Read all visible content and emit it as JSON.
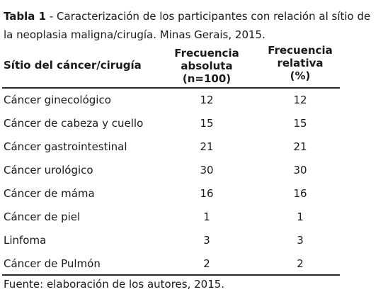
{
  "caption": {
    "label": "Tabla 1",
    "text": " - Caracterización de los participantes con relación al sítio de la neoplasia maligna/cirugía. Minas Gerais, 2015."
  },
  "headers": {
    "site": "Sítio del cáncer/cirugía",
    "absolute": [
      "Frecuencia",
      "absoluta",
      "(n=100)"
    ],
    "relative": [
      "Frecuencia",
      "relativa",
      "(%)"
    ]
  },
  "rows": [
    {
      "site": "Cáncer ginecológico",
      "absolute": "12",
      "relative": "12"
    },
    {
      "site": "Cáncer de cabeza y cuello",
      "absolute": "15",
      "relative": "15"
    },
    {
      "site": "Cáncer gastrointestinal",
      "absolute": "21",
      "relative": "21"
    },
    {
      "site": "Cáncer urológico",
      "absolute": "30",
      "relative": "30"
    },
    {
      "site": "Cáncer de máma",
      "absolute": "16",
      "relative": "16"
    },
    {
      "site": "Cáncer de piel",
      "absolute": "1",
      "relative": "1"
    },
    {
      "site": "Linfoma",
      "absolute": "3",
      "relative": "3"
    },
    {
      "site": "Cáncer de Pulmón",
      "absolute": "2",
      "relative": "2"
    }
  ],
  "footer": "Fuente: elaboración de los autores, 2015."
}
